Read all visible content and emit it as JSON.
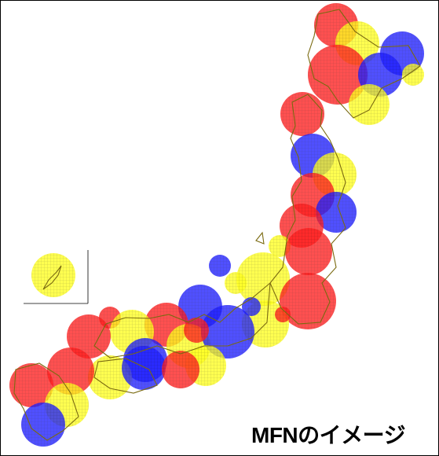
{
  "caption": "MFNのイメージ",
  "colors": {
    "red": "#ff2020",
    "blue": "#2020ff",
    "yellow": "#ffff20",
    "coast": "#7a6a10",
    "frame": "#000000"
  },
  "fill_style": "grid-hatched circles",
  "cell_colors": [
    "red",
    "yellow",
    "blue",
    "red",
    "blue",
    "yellow",
    "yellow",
    "red",
    "blue",
    "yellow",
    "red",
    "blue",
    "red",
    "yellow",
    "red",
    "blue",
    "yellow",
    "red",
    "blue",
    "yellow",
    "red",
    "yellow",
    "blue",
    "red",
    "yellow",
    "red",
    "blue",
    "yellow",
    "red",
    "yellow",
    "blue",
    "red",
    "yellow",
    "blue",
    "red",
    "yellow",
    "red",
    "blue",
    "yellow",
    "red"
  ]
}
